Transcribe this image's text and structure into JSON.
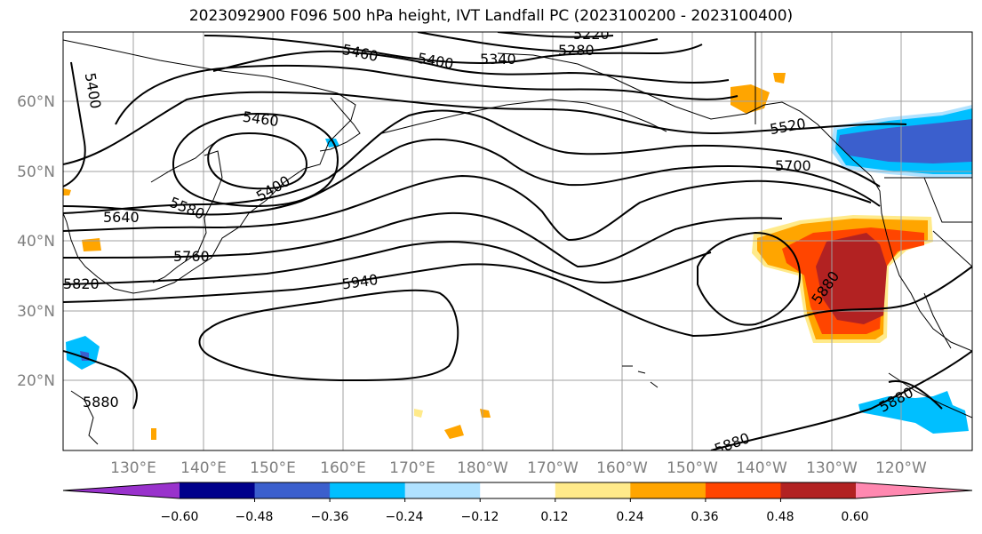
{
  "title": "2023092900 F096 500 hPa height, IVT Landfall PC (2023100200 - 2023100400)",
  "lon_labels": [
    "130°E",
    "140°E",
    "150°E",
    "160°E",
    "170°E",
    "180°W",
    "170°W",
    "160°W",
    "150°W",
    "140°W",
    "130°W",
    "120°W"
  ],
  "lat_labels": [
    "60°N",
    "50°N",
    "40°N",
    "30°N",
    "20°N"
  ],
  "contour_labels": [
    "5400",
    "5460",
    "5400",
    "5340",
    "5280",
    "5220",
    "5460",
    "5400",
    "5520",
    "5700",
    "5640",
    "5580",
    "5760",
    "5820",
    "5940",
    "5880",
    "5880",
    "5880",
    "5880"
  ],
  "colorbar": {
    "colors": [
      "#9932cc",
      "#00008b",
      "#3b5fcd",
      "#00bfff",
      "#b0e2ff",
      "#ffffff",
      "#ffea8a",
      "#ffa500",
      "#ff4500",
      "#b22222",
      "#ff88b0"
    ],
    "tick_labels": [
      "−0.60",
      "−0.48",
      "−0.36",
      "−0.24",
      "−0.12",
      "0.12",
      "0.24",
      "0.36",
      "0.48",
      "0.60"
    ]
  },
  "shading_colors": {
    "pos1": "#ffea8a",
    "pos2": "#ffa500",
    "pos3": "#ff4500",
    "pos4": "#b22222",
    "neg1": "#b0e2ff",
    "neg2": "#00bfff",
    "neg3": "#3b5fcd",
    "neg4": "#00008b",
    "neg5": "#9932cc"
  }
}
